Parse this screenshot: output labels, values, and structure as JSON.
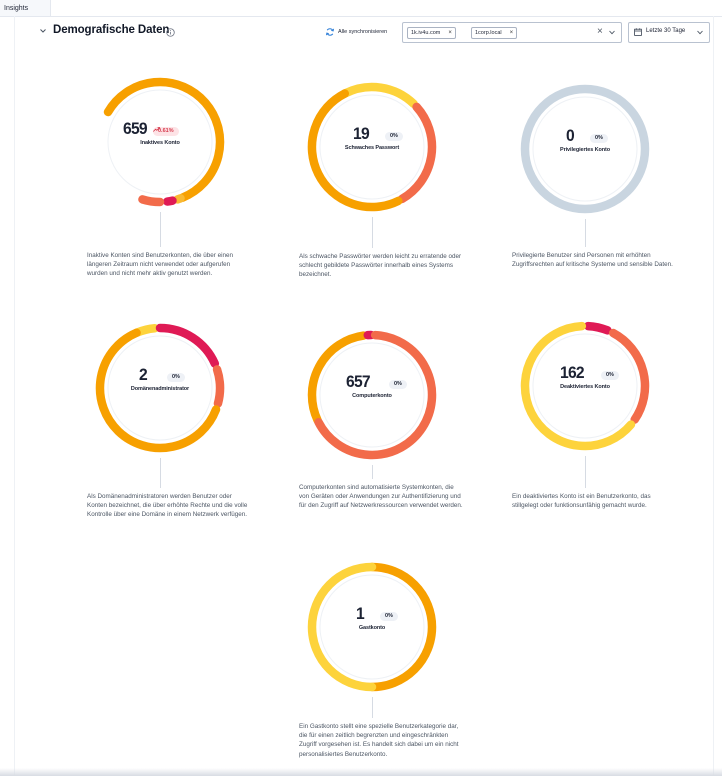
{
  "window": {
    "tab_label": "Insights"
  },
  "header": {
    "title": "Demografische Daten",
    "sync_label": "Alle synchronisieren",
    "filter_chips": [
      "1k.iv4u.com",
      "1corp.local"
    ],
    "date_range": "Letzte 30 Tage"
  },
  "colors": {
    "orange": "#f7a000",
    "light_orange": "#f9b933",
    "yellow": "#fdd33c",
    "coral": "#f26b4a",
    "crimson": "#df1a55",
    "gray": "#c9d5e0"
  },
  "cards": [
    {
      "value": "659",
      "pct": "0.61%",
      "trend": "up",
      "label": "Inaktives Konto",
      "description": "Inaktive Konten sind Benutzerkonten, die über einen längeren Zeitraum nicht verwendet oder aufgerufen wurden und nicht mehr aktiv genutzt werden.",
      "segments": [
        {
          "color": "orange",
          "start": -60,
          "end": 158
        },
        {
          "color": "light_orange",
          "start": 160,
          "end": 163
        },
        {
          "color": "crimson",
          "start": 168,
          "end": 173
        },
        {
          "color": "coral",
          "start": 180,
          "end": 197
        }
      ]
    },
    {
      "value": "19",
      "pct": "0%",
      "trend": "",
      "label": "Schwaches Passwort",
      "description": "Als schwache Passwörter werden leicht zu erratende oder schlecht gebildete Passwörter innerhalb eines Systems bezeichnet.",
      "segments": [
        {
          "color": "yellow",
          "start": -27,
          "end": 44
        },
        {
          "color": "coral",
          "start": 48,
          "end": 150
        },
        {
          "color": "orange",
          "start": 154,
          "end": 333
        }
      ]
    },
    {
      "value": "0",
      "pct": "0%",
      "trend": "",
      "label": "Privilegiertes Konto",
      "description": "Privilegierte Benutzer sind Personen mit erhöhten Zugriffsrechten auf kritische Systeme und sensible Daten.",
      "segments": [
        {
          "color": "gray",
          "start": 0,
          "end": 360
        }
      ]
    },
    {
      "value": "2",
      "pct": "0%",
      "trend": "",
      "label": "Domänenadministrator",
      "description": "Als Domänenadministratoren werden Benutzer oder Konten bezeichnet, die über erhöhte Rechte und die volle Kontrolle über eine Domäne in einem Netzwerk verfügen.",
      "segments": [
        {
          "color": "yellow",
          "start": -23,
          "end": -5
        },
        {
          "color": "crimson",
          "start": 0,
          "end": 66
        },
        {
          "color": "coral",
          "start": 72,
          "end": 105
        },
        {
          "color": "orange",
          "start": 111,
          "end": 337
        }
      ]
    },
    {
      "value": "657",
      "pct": "0%",
      "trend": "",
      "label": "Computerkonto",
      "description": "Computerkonten sind automatisierte Systemkonten, die von Geräten oder Anwendungen zur Authentifizierung und für den Zugriff auf Netzwerkressourcen verwendet werden.",
      "segments": [
        {
          "color": "orange",
          "start": -115,
          "end": -8
        },
        {
          "color": "crimson",
          "start": -4,
          "end": -1
        },
        {
          "color": "coral",
          "start": 3,
          "end": 243
        }
      ]
    },
    {
      "value": "162",
      "pct": "0%",
      "trend": "",
      "label": "Deaktiviertes Konto",
      "description": "Ein deaktiviertes Konto ist ein Benutzerkonto, das stillgelegt oder funktionsunfähig gemacht wurde.",
      "segments": [
        {
          "color": "crimson",
          "start": 3,
          "end": 22
        },
        {
          "color": "coral",
          "start": 28,
          "end": 124
        },
        {
          "color": "yellow",
          "start": 130,
          "end": 357
        }
      ]
    },
    {
      "value": "1",
      "pct": "0%",
      "trend": "",
      "label": "Gastkonto",
      "description": "Ein Gastkonto stellt eine spezielle Benutzerkategorie dar, die für einen zeitlich begrenzten und eingeschränkten Zugriff vorgesehen ist. Es handelt sich dabei um ein nicht personalisiertes Benutzerkonto.",
      "segments": [
        {
          "color": "orange",
          "start": 0,
          "end": 180
        },
        {
          "color": "yellow",
          "start": 180,
          "end": 360
        }
      ]
    }
  ]
}
